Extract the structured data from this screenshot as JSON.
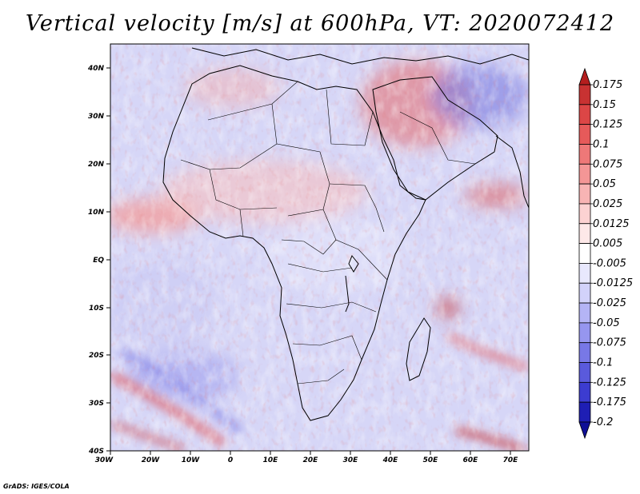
{
  "title": "Vertical velocity [m/s] at 600hPa, VT: 2020072412",
  "credit": "GrADS: IGES/COLA",
  "map": {
    "region": "Africa, Arabian Peninsula and surrounding oceans",
    "lon_range": [
      -30,
      75
    ],
    "lat_range": [
      -40,
      45
    ],
    "lon_ticks": [
      "30W",
      "20W",
      "10W",
      "0",
      "10E",
      "20E",
      "30E",
      "40E",
      "50E",
      "60E",
      "70E"
    ],
    "lat_ticks": [
      "40N",
      "30N",
      "20N",
      "10N",
      "EQ",
      "10S",
      "20S",
      "30S",
      "40S"
    ]
  },
  "colorbar": {
    "labels": [
      "0.175",
      "0.15",
      "0.125",
      "0.1",
      "0.075",
      "0.05",
      "0.025",
      "0.0125",
      "0.005",
      "-0.005",
      "-0.0125",
      "-0.025",
      "-0.05",
      "-0.075",
      "-0.1",
      "-0.125",
      "-0.175",
      "-0.2"
    ],
    "colors": [
      "#b41e1e",
      "#c83232",
      "#dc4646",
      "#e65a5a",
      "#ee7878",
      "#f49696",
      "#f8b4b4",
      "#fcd2d2",
      "#fde8e8",
      "#ffffff",
      "#e8e8fd",
      "#d2d2fa",
      "#b4b4f5",
      "#9696ef",
      "#7878e6",
      "#5a5adc",
      "#3c3cd0",
      "#1e1eb4",
      "#0f0f96"
    ]
  },
  "colors": {
    "background": "#ffffff",
    "land_border": "#000000"
  }
}
